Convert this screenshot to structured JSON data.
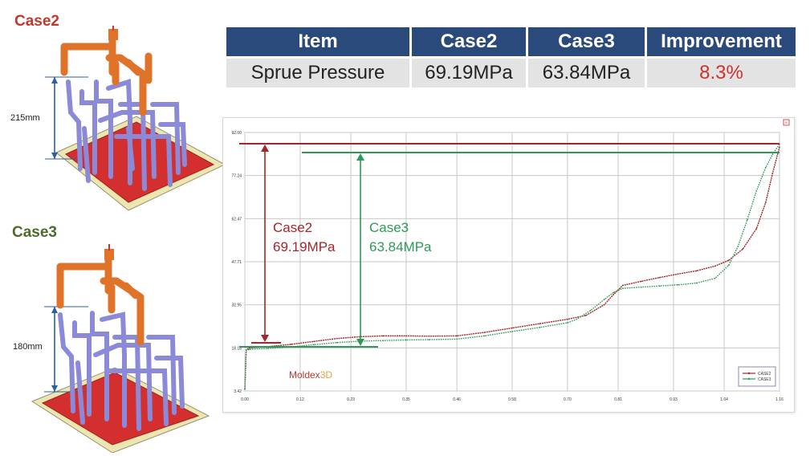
{
  "left_panel": {
    "case2": {
      "label": "Case2",
      "height_label": "215mm",
      "color": "#c0392b"
    },
    "case3": {
      "label": "Case3",
      "height_label": "180mm",
      "color": "#4e6b2a"
    }
  },
  "table": {
    "headers": [
      "Item",
      "Case2",
      "Case3",
      "Improvement"
    ],
    "row": {
      "item": "Sprue Pressure",
      "case2": "69.19MPa",
      "case3": "63.84MPa",
      "improvement": "8.3%"
    },
    "improvement_color": "#d0312d"
  },
  "chart_data": {
    "type": "line",
    "title": "",
    "xlabel": "",
    "ylabel": "",
    "x_ticks": [
      0.0,
      0.12,
      0.23,
      0.35,
      0.46,
      0.58,
      0.7,
      0.81,
      0.93,
      1.04,
      1.16
    ],
    "y_ticks": [
      3.42,
      18.18,
      32.95,
      47.71,
      62.47,
      77.24,
      92.0
    ],
    "xlim": [
      0,
      1.16
    ],
    "ylim": [
      3.42,
      92.0
    ],
    "grid": true,
    "legend_position": "bottom-right",
    "series": [
      {
        "name": "CASE2",
        "color": "#a3262a",
        "x": [
          0.0,
          0.003,
          0.01,
          0.05,
          0.1,
          0.15,
          0.2,
          0.25,
          0.3,
          0.35,
          0.4,
          0.46,
          0.52,
          0.58,
          0.64,
          0.7,
          0.74,
          0.78,
          0.8,
          0.82,
          0.86,
          0.9,
          0.94,
          0.98,
          1.02,
          1.05,
          1.08,
          1.11,
          1.13,
          1.145,
          1.16
        ],
        "y": [
          4.0,
          17.5,
          18.2,
          18.6,
          19.4,
          20.4,
          21.4,
          22.0,
          22.3,
          22.3,
          22.2,
          22.3,
          23.5,
          25.0,
          26.5,
          28.0,
          29.3,
          33.0,
          36.5,
          39.6,
          41.0,
          42.3,
          43.5,
          44.6,
          46.2,
          48.2,
          52.0,
          59.0,
          68.0,
          78.0,
          87.0
        ]
      },
      {
        "name": "CASE3",
        "color": "#2e9a5a",
        "x": [
          0.0,
          0.003,
          0.01,
          0.05,
          0.1,
          0.15,
          0.2,
          0.25,
          0.3,
          0.35,
          0.4,
          0.46,
          0.52,
          0.58,
          0.64,
          0.7,
          0.72,
          0.75,
          0.78,
          0.8,
          0.82,
          0.86,
          0.9,
          0.94,
          0.98,
          1.02,
          1.05,
          1.07,
          1.09,
          1.11,
          1.13,
          1.145,
          1.16
        ],
        "y": [
          4.0,
          17.3,
          17.7,
          18.0,
          18.5,
          19.3,
          20.0,
          20.5,
          20.7,
          20.9,
          21.0,
          21.2,
          22.3,
          23.8,
          25.2,
          26.8,
          28.0,
          31.0,
          34.8,
          37.2,
          38.6,
          39.0,
          39.4,
          39.8,
          40.4,
          42.0,
          46.5,
          53.0,
          62.0,
          72.0,
          80.0,
          84.5,
          88.0
        ]
      }
    ],
    "annotations": [
      {
        "label": "Case2",
        "value": "69.19MPa",
        "color": "#a3262a"
      },
      {
        "label": "Case3",
        "value": "63.84MPa",
        "color": "#2e9a5a"
      }
    ],
    "watermark": "Moldex3D"
  }
}
